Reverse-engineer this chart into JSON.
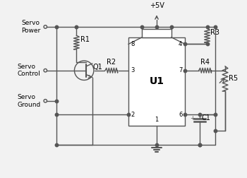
{
  "bg_color": "#f2f2f2",
  "line_color": "#555555",
  "labels": {
    "servo_power": "Servo\nPower",
    "servo_control": "Servo\nControl",
    "servo_ground": "Servo\nGround",
    "r1": "R1",
    "r2": "R2",
    "r3": "R3",
    "r4": "R4",
    "r5": "R5",
    "q1": "Q1",
    "u1": "U1",
    "c1": "C1",
    "vcc": "+5V",
    "pin8": "8",
    "pin4": "4",
    "pin3": "3",
    "pin7": "7",
    "pin2": "2",
    "pin6": "6",
    "pin1": "1"
  },
  "figsize": [
    3.5,
    2.52
  ],
  "dpi": 100
}
